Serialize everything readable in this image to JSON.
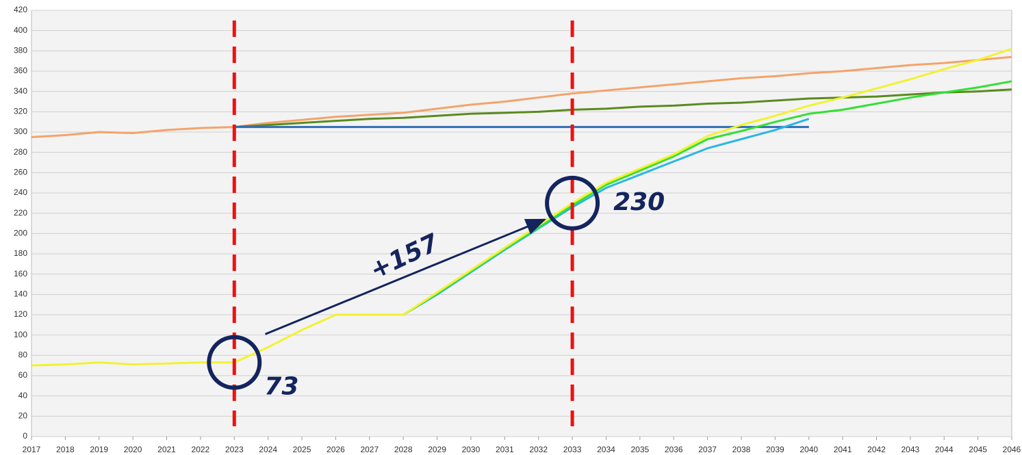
{
  "chart_data": {
    "type": "line",
    "x": [
      2017,
      2018,
      2019,
      2020,
      2021,
      2022,
      2023,
      2024,
      2025,
      2026,
      2027,
      2028,
      2029,
      2030,
      2031,
      2032,
      2033,
      2034,
      2035,
      2036,
      2037,
      2038,
      2039,
      2040,
      2041,
      2042,
      2043,
      2044,
      2045,
      2046
    ],
    "series": [
      {
        "color": "#f4a36a",
        "values": [
          295,
          297,
          300,
          299,
          302,
          304,
          305,
          309,
          312,
          315,
          317,
          319,
          323,
          327,
          330,
          334,
          338,
          341,
          344,
          347,
          350,
          353,
          355,
          358,
          360,
          363,
          366,
          368,
          371,
          374
        ]
      },
      {
        "color": "#5a8a1e",
        "values": [
          null,
          null,
          null,
          null,
          null,
          null,
          305,
          307,
          309,
          311,
          313,
          314,
          316,
          318,
          319,
          320,
          322,
          323,
          325,
          326,
          328,
          329,
          331,
          333,
          334,
          335,
          337,
          339,
          340,
          342
        ]
      },
      {
        "color": "#2e6db4",
        "values": [
          null,
          null,
          null,
          null,
          null,
          null,
          305,
          305,
          305,
          305,
          305,
          305,
          305,
          305,
          305,
          305,
          305,
          305,
          305,
          305,
          305,
          305,
          305,
          305,
          null,
          null,
          null,
          null,
          null,
          null
        ]
      },
      {
        "color": "#29b6e8",
        "values": [
          null,
          null,
          null,
          null,
          null,
          null,
          null,
          null,
          null,
          null,
          null,
          120,
          140,
          162,
          184,
          205,
          226,
          245,
          258,
          271,
          284,
          293,
          302,
          313,
          null,
          null,
          null,
          null,
          null,
          null
        ]
      },
      {
        "color": "#33e033",
        "values": [
          null,
          null,
          null,
          null,
          null,
          null,
          null,
          null,
          null,
          null,
          null,
          120,
          141,
          163,
          185,
          206,
          228,
          248,
          262,
          276,
          293,
          301,
          310,
          318,
          322,
          328,
          334,
          339,
          344,
          350
        ]
      },
      {
        "color": "#f2f230",
        "values": [
          70,
          71,
          73,
          71,
          72,
          73,
          73,
          88,
          105,
          120,
          120,
          120,
          142,
          164,
          186,
          208,
          230,
          250,
          264,
          278,
          296,
          307,
          316,
          326,
          334,
          343,
          352,
          362,
          371,
          382
        ]
      }
    ],
    "xlim": [
      2017,
      2046
    ],
    "ylim": [
      0,
      420
    ],
    "xticks": [
      2017,
      2018,
      2019,
      2020,
      2021,
      2022,
      2023,
      2024,
      2025,
      2026,
      2027,
      2028,
      2029,
      2030,
      2031,
      2032,
      2033,
      2034,
      2035,
      2036,
      2037,
      2038,
      2039,
      2040,
      2041,
      2042,
      2043,
      2044,
      2045,
      2046
    ],
    "yticks": [
      0,
      20,
      40,
      60,
      80,
      100,
      120,
      140,
      160,
      180,
      200,
      220,
      240,
      260,
      280,
      300,
      320,
      340,
      360,
      380,
      400,
      420
    ],
    "grid": true,
    "vlines": [
      2023,
      2033
    ],
    "annotations": [
      {
        "text": "73",
        "x": 2023,
        "y": 73
      },
      {
        "text": "230",
        "x": 2033,
        "y": 230
      },
      {
        "text": "+157"
      }
    ]
  }
}
